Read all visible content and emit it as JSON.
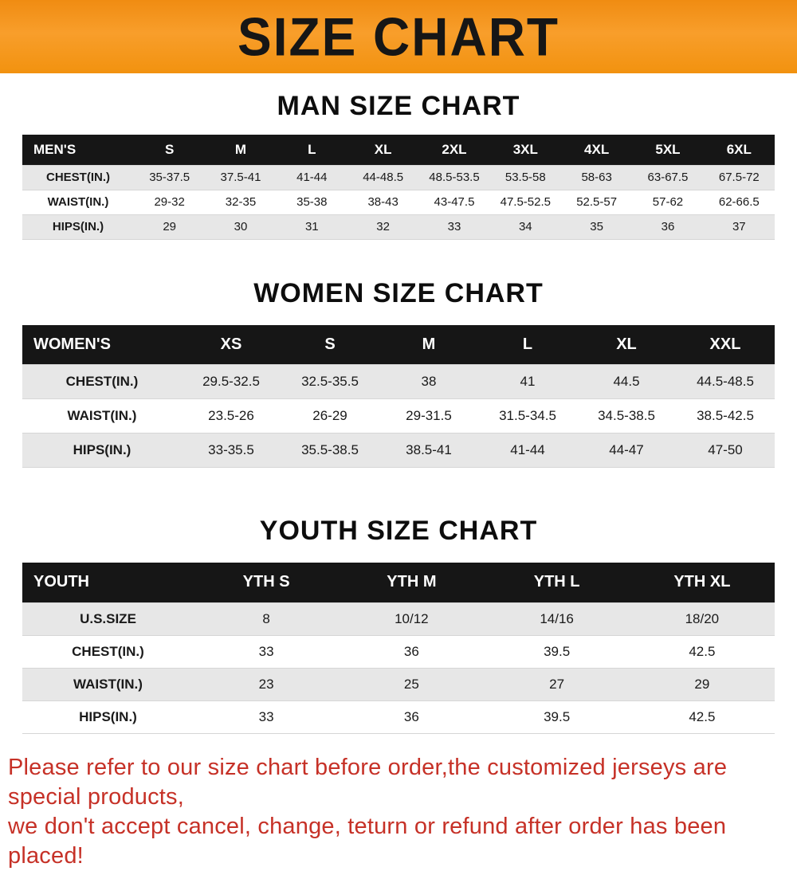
{
  "banner": {
    "title": "SIZE CHART",
    "background_color": "#f7941d",
    "title_color": "#161616"
  },
  "chart_data": [
    {
      "type": "table",
      "title": "MAN SIZE CHART",
      "header": [
        "MEN'S",
        "S",
        "M",
        "L",
        "XL",
        "2XL",
        "3XL",
        "4XL",
        "5XL",
        "6XL"
      ],
      "rows": [
        [
          "CHEST(IN.)",
          "35-37.5",
          "37.5-41",
          "41-44",
          "44-48.5",
          "48.5-53.5",
          "53.5-58",
          "58-63",
          "63-67.5",
          "67.5-72"
        ],
        [
          "WAIST(IN.)",
          "29-32",
          "32-35",
          "35-38",
          "38-43",
          "43-47.5",
          "47.5-52.5",
          "52.5-57",
          "57-62",
          "62-66.5"
        ],
        [
          "HIPS(IN.)",
          "29",
          "30",
          "31",
          "32",
          "33",
          "34",
          "35",
          "36",
          "37"
        ]
      ]
    },
    {
      "type": "table",
      "title": "WOMEN SIZE CHART",
      "header": [
        "WOMEN'S",
        "XS",
        "S",
        "M",
        "L",
        "XL",
        "XXL"
      ],
      "rows": [
        [
          "CHEST(IN.)",
          "29.5-32.5",
          "32.5-35.5",
          "38",
          "41",
          "44.5",
          "44.5-48.5"
        ],
        [
          "WAIST(IN.)",
          "23.5-26",
          "26-29",
          "29-31.5",
          "31.5-34.5",
          "34.5-38.5",
          "38.5-42.5"
        ],
        [
          "HIPS(IN.)",
          "33-35.5",
          "35.5-38.5",
          "38.5-41",
          "41-44",
          "44-47",
          "47-50"
        ]
      ]
    },
    {
      "type": "table",
      "title": "YOUTH SIZE CHART",
      "header": [
        "YOUTH",
        "YTH S",
        "YTH M",
        "YTH L",
        "YTH XL"
      ],
      "rows": [
        [
          "U.S.SIZE",
          "8",
          "10/12",
          "14/16",
          "18/20"
        ],
        [
          "CHEST(IN.)",
          "33",
          "36",
          "39.5",
          "42.5"
        ],
        [
          "WAIST(IN.)",
          "23",
          "25",
          "27",
          "29"
        ],
        [
          "HIPS(IN.)",
          "33",
          "36",
          "39.5",
          "42.5"
        ]
      ]
    }
  ],
  "footer": {
    "lines": [
      "Please refer to our size chart before order,the customized jerseys are special products,",
      "we don't accept cancel, change, teturn or refund after order has been placed!"
    ],
    "text_color": "#c63127"
  }
}
